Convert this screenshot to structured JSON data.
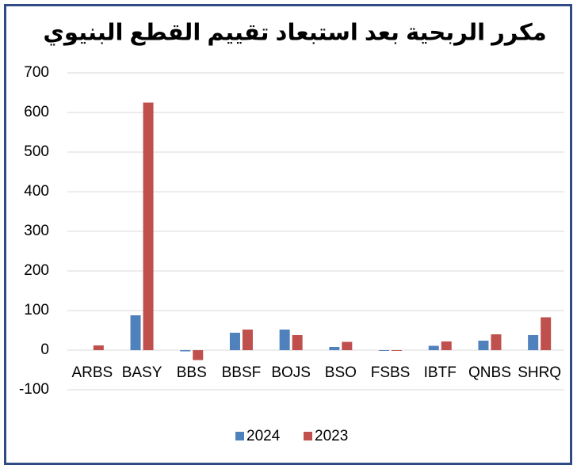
{
  "chart_data": {
    "type": "bar",
    "title": "مكرر الربحية بعد استبعاد تقييم القطع البنيوي",
    "categories": [
      "ARBS",
      "BASY",
      "BBS",
      "BBSF",
      "BOJS",
      "BSO",
      "FSBS",
      "IBTF",
      "QNBS",
      "SHRQ"
    ],
    "series": [
      {
        "name": "2024",
        "color": "#4f81bd",
        "values": [
          0,
          88,
          -3,
          44,
          52,
          8,
          -2,
          11,
          24,
          38
        ]
      },
      {
        "name": "2023",
        "color": "#c0504d",
        "values": [
          12,
          625,
          -25,
          52,
          38,
          21,
          -2,
          22,
          40,
          83
        ]
      }
    ],
    "ylim": [
      -100,
      700
    ],
    "yticks": [
      -100,
      0,
      100,
      200,
      300,
      400,
      500,
      600,
      700
    ],
    "grid": true,
    "legend": "bottom"
  }
}
